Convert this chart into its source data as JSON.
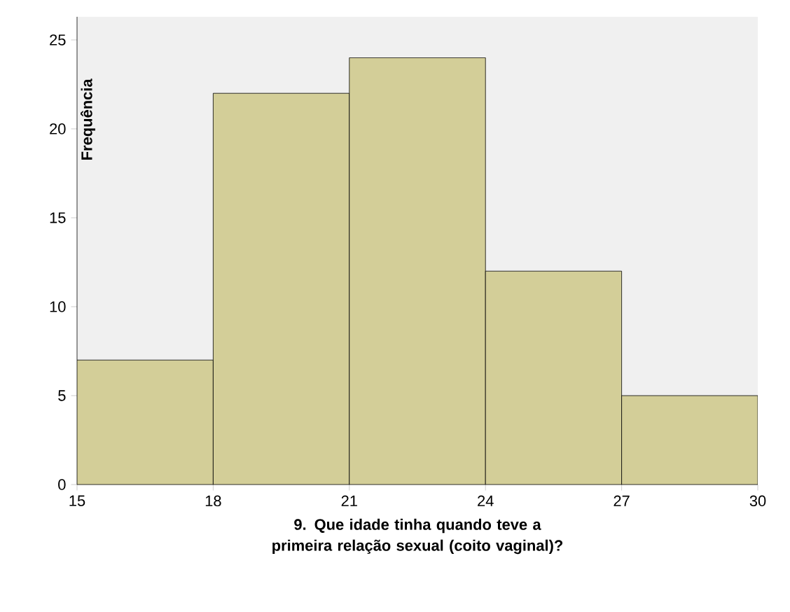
{
  "chart_data": {
    "type": "histogram",
    "xlabel": "9. Que idade tinha quando teve a primeira relação sexual (coito vaginal)?",
    "ylabel": "Frequência",
    "bins": [
      15,
      18,
      21,
      24,
      27,
      30
    ],
    "values": [
      7,
      22,
      24,
      12,
      5
    ],
    "color": "#d3ce98",
    "xlim": [
      15,
      30
    ],
    "xticks": [
      15,
      18,
      21,
      24,
      27,
      30
    ],
    "ylim": [
      0,
      26.3
    ],
    "yticks": [
      0,
      5,
      10,
      15,
      20,
      25
    ],
    "grid": false
  }
}
